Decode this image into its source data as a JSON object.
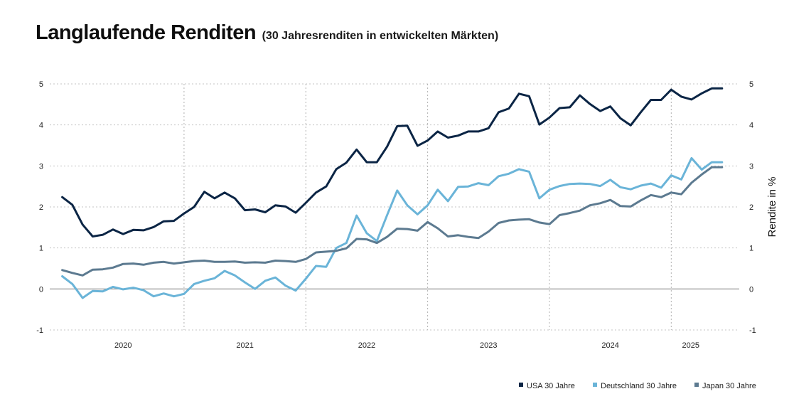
{
  "header": {
    "title": "Langlaufende Renditen",
    "subtitle": "(30 Jahresrenditen in entwickelten Märkten)"
  },
  "chart_data": {
    "type": "line",
    "title": "Langlaufende Renditen",
    "subtitle": "(30 Jahresrenditen in entwickelten Märkten)",
    "xlabel": "",
    "ylabel": "Rendite in %",
    "ylim": [
      -1,
      5
    ],
    "yticks": [
      "-1",
      "0",
      "1",
      "2",
      "3",
      "4",
      "5"
    ],
    "x_year_labels": [
      "2020",
      "2021",
      "2022",
      "2023",
      "2024",
      "2025"
    ],
    "x_year_label_positions": [
      2020.0,
      2021.0,
      2022.0,
      2023.0,
      2024.0,
      2024.66
    ],
    "year_boundaries": [
      2020.5,
      2021.5,
      2022.5,
      2023.5,
      2024.5
    ],
    "xlim": [
      2019.45,
      2025.0
    ],
    "grid": "dotted vertical year separators and horizontal gridlines",
    "legend_position": "bottom-right",
    "series": [
      {
        "name": "USA 30 Jahre",
        "color": "#0b2545",
        "x": [
          2019.5,
          2019.583,
          2019.667,
          2019.75,
          2019.833,
          2019.917,
          2020.0,
          2020.083,
          2020.167,
          2020.25,
          2020.333,
          2020.417,
          2020.5,
          2020.583,
          2020.667,
          2020.75,
          2020.833,
          2020.917,
          2021.0,
          2021.083,
          2021.167,
          2021.25,
          2021.333,
          2021.417,
          2021.5,
          2021.583,
          2021.667,
          2021.75,
          2021.833,
          2021.917,
          2022.0,
          2022.083,
          2022.167,
          2022.25,
          2022.333,
          2022.417,
          2022.5,
          2022.583,
          2022.667,
          2022.75,
          2022.833,
          2022.917,
          2023.0,
          2023.083,
          2023.167,
          2023.25,
          2023.333,
          2023.417,
          2023.5,
          2023.583,
          2023.667,
          2023.75,
          2023.833,
          2023.917,
          2024.0,
          2024.083,
          2024.167,
          2024.25,
          2024.333,
          2024.417,
          2024.5,
          2024.583,
          2024.667,
          2024.75,
          2024.833,
          2024.917
        ],
        "values": [
          2.24,
          2.05,
          1.57,
          1.28,
          1.32,
          1.45,
          1.34,
          1.44,
          1.43,
          1.51,
          1.65,
          1.66,
          1.84,
          2.0,
          2.37,
          2.21,
          2.35,
          2.21,
          1.92,
          1.94,
          1.87,
          2.04,
          2.01,
          1.86,
          2.1,
          2.35,
          2.5,
          2.92,
          3.08,
          3.4,
          3.09,
          3.09,
          3.47,
          3.97,
          3.98,
          3.49,
          3.62,
          3.84,
          3.69,
          3.74,
          3.84,
          3.84,
          3.92,
          4.31,
          4.4,
          4.76,
          4.7,
          4.01,
          4.18,
          4.41,
          4.43,
          4.72,
          4.51,
          4.34,
          4.45,
          4.16,
          3.99,
          4.31,
          4.61,
          4.61,
          4.86,
          4.69,
          4.62,
          4.77,
          4.89,
          4.89
        ]
      },
      {
        "name": "Deutschland 30 Jahre",
        "color": "#6ab4d8",
        "x": [
          2019.5,
          2019.583,
          2019.667,
          2019.75,
          2019.833,
          2019.917,
          2020.0,
          2020.083,
          2020.167,
          2020.25,
          2020.333,
          2020.417,
          2020.5,
          2020.583,
          2020.667,
          2020.75,
          2020.833,
          2020.917,
          2021.0,
          2021.083,
          2021.167,
          2021.25,
          2021.333,
          2021.417,
          2021.5,
          2021.583,
          2021.667,
          2021.75,
          2021.833,
          2021.917,
          2022.0,
          2022.083,
          2022.167,
          2022.25,
          2022.333,
          2022.417,
          2022.5,
          2022.583,
          2022.667,
          2022.75,
          2022.833,
          2022.917,
          2023.0,
          2023.083,
          2023.167,
          2023.25,
          2023.333,
          2023.417,
          2023.5,
          2023.583,
          2023.667,
          2023.75,
          2023.833,
          2023.917,
          2024.0,
          2024.083,
          2024.167,
          2024.25,
          2024.333,
          2024.417,
          2024.5,
          2024.583,
          2024.667,
          2024.75,
          2024.833,
          2024.917
        ],
        "values": [
          0.31,
          0.12,
          -0.22,
          -0.05,
          -0.06,
          0.05,
          -0.01,
          0.03,
          -0.03,
          -0.18,
          -0.11,
          -0.18,
          -0.12,
          0.12,
          0.2,
          0.26,
          0.44,
          0.33,
          0.16,
          0.0,
          0.2,
          0.28,
          0.08,
          -0.04,
          0.25,
          0.56,
          0.54,
          1.0,
          1.12,
          1.79,
          1.36,
          1.17,
          1.8,
          2.4,
          2.04,
          1.82,
          2.04,
          2.42,
          2.14,
          2.49,
          2.5,
          2.58,
          2.53,
          2.75,
          2.81,
          2.92,
          2.86,
          2.21,
          2.42,
          2.51,
          2.56,
          2.57,
          2.56,
          2.51,
          2.66,
          2.48,
          2.43,
          2.52,
          2.57,
          2.47,
          2.77,
          2.67,
          3.19,
          2.91,
          3.09,
          3.09
        ]
      },
      {
        "name": "Japan 30 Jahre",
        "color": "#5c7a90",
        "x": [
          2019.5,
          2019.583,
          2019.667,
          2019.75,
          2019.833,
          2019.917,
          2020.0,
          2020.083,
          2020.167,
          2020.25,
          2020.333,
          2020.417,
          2020.5,
          2020.583,
          2020.667,
          2020.75,
          2020.833,
          2020.917,
          2021.0,
          2021.083,
          2021.167,
          2021.25,
          2021.333,
          2021.417,
          2021.5,
          2021.583,
          2021.667,
          2021.75,
          2021.833,
          2021.917,
          2022.0,
          2022.083,
          2022.167,
          2022.25,
          2022.333,
          2022.417,
          2022.5,
          2022.583,
          2022.667,
          2022.75,
          2022.833,
          2022.917,
          2023.0,
          2023.083,
          2023.167,
          2023.25,
          2023.333,
          2023.417,
          2023.5,
          2023.583,
          2023.667,
          2023.75,
          2023.833,
          2023.917,
          2024.0,
          2024.083,
          2024.167,
          2024.25,
          2024.333,
          2024.417,
          2024.5,
          2024.583,
          2024.667,
          2024.75,
          2024.833,
          2024.917
        ],
        "values": [
          0.46,
          0.39,
          0.33,
          0.47,
          0.48,
          0.52,
          0.61,
          0.62,
          0.59,
          0.64,
          0.66,
          0.62,
          0.65,
          0.68,
          0.69,
          0.66,
          0.66,
          0.67,
          0.64,
          0.65,
          0.64,
          0.69,
          0.68,
          0.66,
          0.73,
          0.89,
          0.91,
          0.93,
          0.99,
          1.22,
          1.21,
          1.12,
          1.27,
          1.47,
          1.46,
          1.42,
          1.63,
          1.48,
          1.28,
          1.31,
          1.27,
          1.24,
          1.4,
          1.61,
          1.67,
          1.69,
          1.7,
          1.62,
          1.58,
          1.8,
          1.85,
          1.91,
          2.04,
          2.09,
          2.17,
          2.02,
          2.01,
          2.16,
          2.29,
          2.24,
          2.35,
          2.31,
          2.59,
          2.79,
          2.97,
          2.97
        ]
      }
    ]
  }
}
